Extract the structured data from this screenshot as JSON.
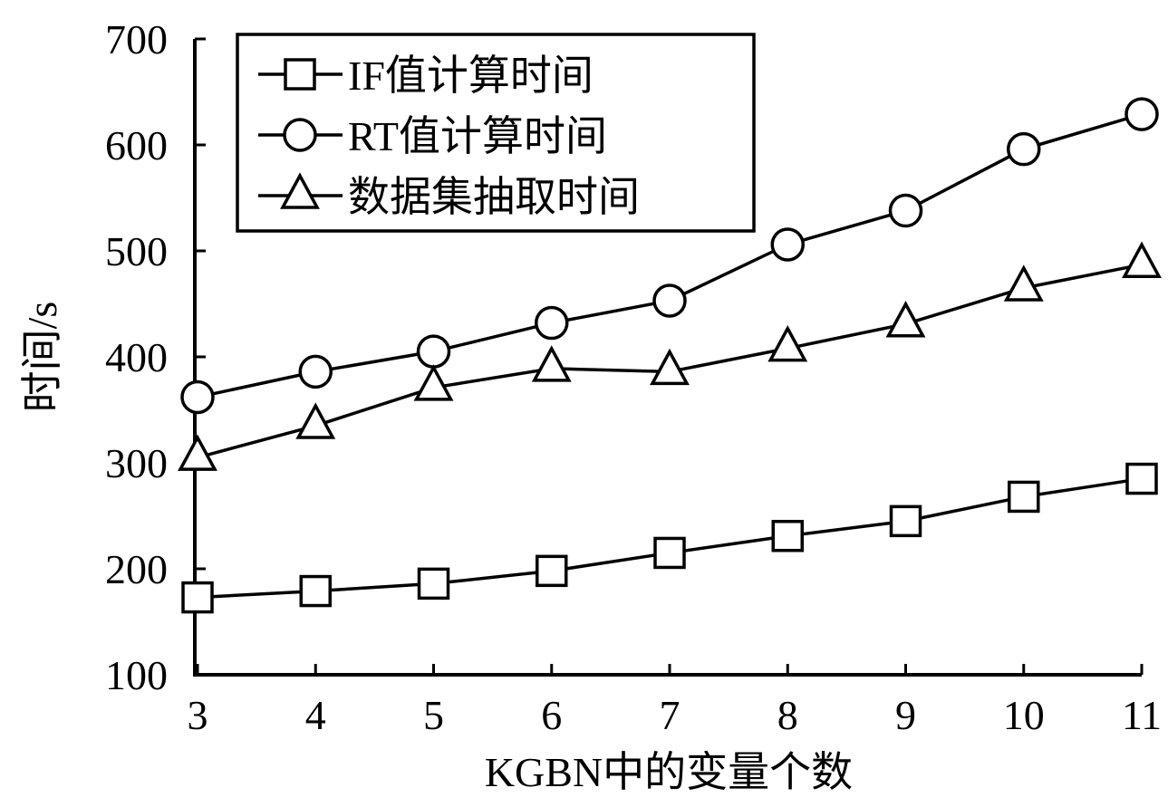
{
  "chart_data": {
    "type": "line",
    "title": "",
    "xlabel": "KGBN中的变量个数",
    "ylabel": "时间/s",
    "x": [
      3,
      4,
      5,
      6,
      7,
      8,
      9,
      10,
      11
    ],
    "xlim": [
      3,
      11
    ],
    "ylim": [
      100,
      700
    ],
    "yticks": [
      100,
      200,
      300,
      400,
      500,
      600,
      700
    ],
    "xticks": [
      3,
      4,
      5,
      6,
      7,
      8,
      9,
      10,
      11
    ],
    "grid": false,
    "legend_position": "top-left",
    "series": [
      {
        "name": "IF值计算时间",
        "marker": "square",
        "color": "#000000",
        "values": [
          173,
          179,
          186,
          198,
          215,
          231,
          245,
          268,
          285
        ]
      },
      {
        "name": "RT值计算时间",
        "marker": "circle",
        "color": "#000000",
        "values": [
          362,
          386,
          405,
          432,
          453,
          506,
          538,
          596,
          629
        ]
      },
      {
        "name": "数据集抽取时间",
        "marker": "triangle",
        "color": "#000000",
        "values": [
          305,
          335,
          371,
          389,
          386,
          408,
          431,
          465,
          487
        ]
      }
    ]
  }
}
